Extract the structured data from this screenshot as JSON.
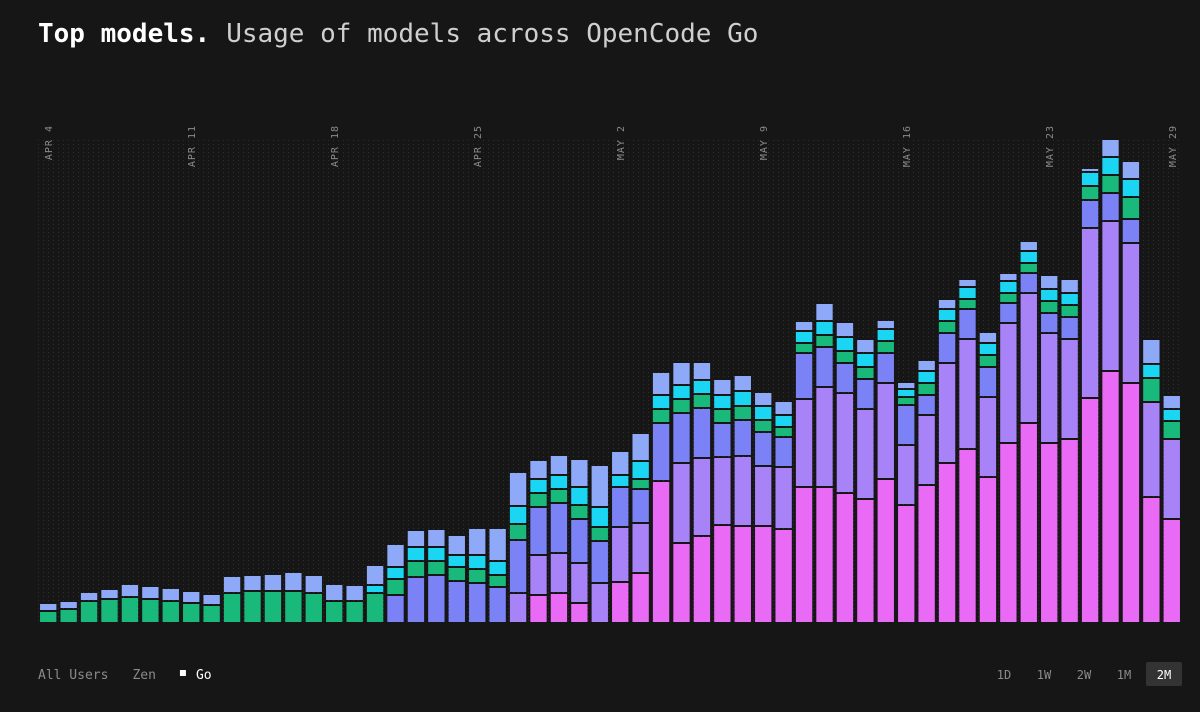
{
  "chart_data": {
    "type": "stacked_bar",
    "title": "Top models.",
    "subtitle": "Usage of models across OpenCode Go",
    "categories": [
      "APR 4",
      null,
      null,
      null,
      null,
      null,
      null,
      "APR 11",
      null,
      null,
      null,
      null,
      null,
      null,
      "APR 18",
      null,
      null,
      null,
      null,
      null,
      null,
      "APR 25",
      null,
      null,
      null,
      null,
      null,
      null,
      "MAY 2",
      null,
      null,
      null,
      null,
      null,
      null,
      "MAY 9",
      null,
      null,
      null,
      null,
      null,
      null,
      "MAY 16",
      null,
      null,
      null,
      null,
      null,
      null,
      "MAY 23",
      null,
      null,
      null,
      null,
      null,
      "MAY 29"
    ],
    "ylim": [
      0,
      484
    ],
    "series": [
      {
        "color": "#e96af5",
        "values": [
          0,
          0,
          0,
          0,
          0,
          0,
          0,
          0,
          0,
          0,
          0,
          0,
          0,
          0,
          0,
          0,
          0,
          0,
          0,
          0,
          0,
          0,
          0,
          0,
          28,
          30,
          20,
          0,
          41,
          50,
          142,
          80,
          87,
          98,
          97,
          97,
          94,
          136,
          136,
          130,
          124,
          144,
          118,
          138,
          160,
          174,
          146,
          180,
          200,
          180,
          184,
          225,
          252,
          240,
          126,
          104
        ]
      },
      {
        "color": "#a882f7",
        "values": [
          0,
          0,
          0,
          0,
          0,
          0,
          0,
          0,
          0,
          0,
          0,
          0,
          0,
          0,
          0,
          0,
          0,
          0,
          0,
          0,
          0,
          0,
          0,
          30,
          40,
          40,
          40,
          40,
          55,
          50,
          0,
          80,
          78,
          68,
          70,
          60,
          62,
          88,
          100,
          100,
          90,
          96,
          60,
          70,
          100,
          110,
          80,
          120,
          130,
          110,
          100,
          170,
          150,
          140,
          95,
          80
        ]
      },
      {
        "color": "#7a82f5",
        "values": [
          0,
          0,
          0,
          0,
          0,
          0,
          0,
          0,
          0,
          0,
          0,
          0,
          0,
          0,
          0,
          0,
          0,
          28,
          46,
          48,
          42,
          40,
          36,
          53,
          48,
          50,
          44,
          42,
          40,
          34,
          58,
          50,
          50,
          34,
          36,
          34,
          30,
          46,
          40,
          30,
          30,
          30,
          40,
          20,
          30,
          30,
          30,
          20,
          20,
          20,
          22,
          28,
          28,
          24,
          0,
          0
        ]
      },
      {
        "color": "#18b97a",
        "values": [
          12,
          14,
          22,
          24,
          26,
          24,
          22,
          20,
          18,
          30,
          32,
          32,
          32,
          30,
          22,
          22,
          30,
          16,
          16,
          14,
          14,
          14,
          12,
          16,
          14,
          14,
          14,
          14,
          0,
          10,
          14,
          14,
          14,
          14,
          14,
          12,
          10,
          10,
          12,
          12,
          12,
          12,
          8,
          12,
          12,
          10,
          12,
          10,
          10,
          12,
          12,
          14,
          18,
          22,
          24,
          18
        ]
      },
      {
        "color": "#1ad6f2",
        "values": [
          0,
          0,
          0,
          0,
          0,
          0,
          0,
          0,
          0,
          0,
          0,
          0,
          0,
          0,
          0,
          0,
          8,
          12,
          14,
          14,
          12,
          14,
          14,
          18,
          14,
          14,
          18,
          20,
          12,
          18,
          14,
          14,
          14,
          14,
          15,
          14,
          12,
          12,
          14,
          14,
          14,
          12,
          8,
          12,
          12,
          12,
          12,
          12,
          12,
          12,
          12,
          14,
          18,
          18,
          14,
          12
        ]
      },
      {
        "color": "#8ea9f7",
        "values": [
          8,
          8,
          9,
          10,
          13,
          13,
          13,
          12,
          11,
          17,
          16,
          17,
          19,
          18,
          17,
          16,
          20,
          23,
          17,
          18,
          20,
          27,
          33,
          34,
          19,
          20,
          28,
          42,
          24,
          28,
          23,
          23,
          18,
          16,
          16,
          14,
          14,
          10,
          18,
          15,
          14,
          9,
          7,
          11,
          10,
          8,
          11,
          8,
          10,
          14,
          14,
          4,
          18,
          18,
          25,
          14
        ]
      }
    ]
  },
  "filters": {
    "audience": [
      "All Users",
      "Zen",
      "Go"
    ],
    "audience_selected": 2,
    "ranges": [
      "1D",
      "1W",
      "2W",
      "1M",
      "2M"
    ],
    "range_selected": 4
  }
}
